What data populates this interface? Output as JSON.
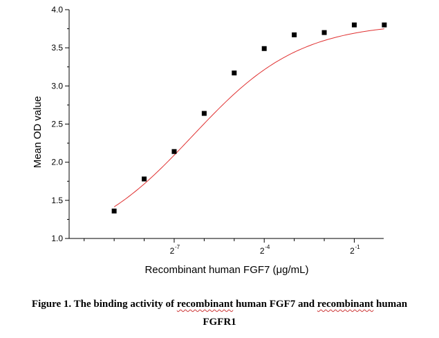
{
  "chart_data": {
    "type": "scatter",
    "title": "",
    "xlabel": "Recombinant human FGF7 (μg/mL)",
    "ylabel": "Mean OD value",
    "xscale": "log2",
    "xlim_log2": [
      -10.5,
      -0.02
    ],
    "ylim": [
      1.0,
      4.0
    ],
    "y_ticks": [
      {
        "value": 1.0,
        "label": "1.0"
      },
      {
        "value": 1.5,
        "label": "1.5"
      },
      {
        "value": 2.0,
        "label": "2.0"
      },
      {
        "value": 2.5,
        "label": "2.5"
      },
      {
        "value": 3.0,
        "label": "3.0"
      },
      {
        "value": 3.5,
        "label": "3.5"
      },
      {
        "value": 4.0,
        "label": "4.0"
      }
    ],
    "x_ticks": [
      {
        "exponent": -7,
        "base": "2",
        "exp_label": "-7"
      },
      {
        "exponent": -4,
        "base": "2",
        "exp_label": "-4"
      },
      {
        "exponent": -1,
        "base": "2",
        "exp_label": "-1"
      }
    ],
    "grid": false,
    "legend": "none",
    "series": [
      {
        "marker": "square",
        "color": "#000000",
        "points": [
          {
            "x_log2": -9.0,
            "y": 1.36
          },
          {
            "x_log2": -8.0,
            "y": 1.78
          },
          {
            "x_log2": -7.0,
            "y": 2.14
          },
          {
            "x_log2": -6.0,
            "y": 2.64
          },
          {
            "x_log2": -5.0,
            "y": 3.17
          },
          {
            "x_log2": -4.0,
            "y": 3.49
          },
          {
            "x_log2": -3.0,
            "y": 3.67
          },
          {
            "x_log2": -2.0,
            "y": 3.7
          },
          {
            "x_log2": -1.0,
            "y": 3.8
          },
          {
            "x_log2": 0.0,
            "y": 3.8
          }
        ]
      }
    ],
    "fit": {
      "model": "4PL",
      "color": "#e03030",
      "bottom": 0.85,
      "top": 3.83,
      "ec50_log2": -6.4,
      "slope_log2": 0.62,
      "range_log2": [
        -9.0,
        0.0
      ]
    }
  },
  "caption": {
    "line1_a": "Figure 1. The binding activity of ",
    "line1_b": "recombinant",
    "line1_c": " human FGF7 and ",
    "line1_d": "recombinant",
    "line1_e": " human",
    "line2": "FGFR1"
  },
  "colors": {
    "axis": "#000000",
    "marker": "#000000",
    "fit_line": "#e03030"
  }
}
